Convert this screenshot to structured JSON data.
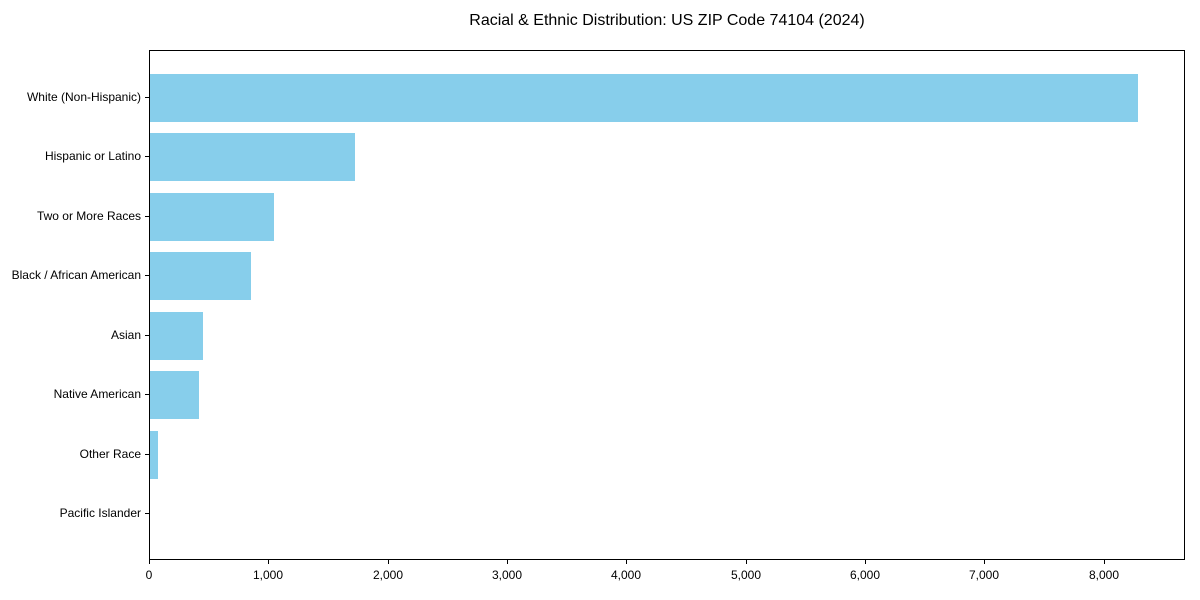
{
  "page": {
    "background_color": "#ffffff",
    "text_color": "#000000"
  },
  "chart_data": {
    "type": "bar",
    "orientation": "horizontal",
    "title": "Racial & Ethnic Distribution: US ZIP Code 74104 (2024)",
    "categories": [
      "White (Non-Hispanic)",
      "Hispanic or Latino",
      "Two or More Races",
      "Black / African American",
      "Asian",
      "Native American",
      "Other Race",
      "Pacific Islander"
    ],
    "values": [
      8280,
      1720,
      1040,
      850,
      440,
      410,
      65,
      0
    ],
    "xlabel": "",
    "ylabel": "",
    "xlim": [
      0,
      8680
    ],
    "xticks": [
      0,
      1000,
      2000,
      3000,
      4000,
      5000,
      6000,
      7000,
      8000
    ],
    "xtick_labels": [
      "0",
      "1,000",
      "2,000",
      "3,000",
      "4,000",
      "5,000",
      "6,000",
      "7,000",
      "8,000"
    ],
    "bar_color": "#87CEEB",
    "grid": false,
    "frame": true,
    "legend": "none"
  }
}
